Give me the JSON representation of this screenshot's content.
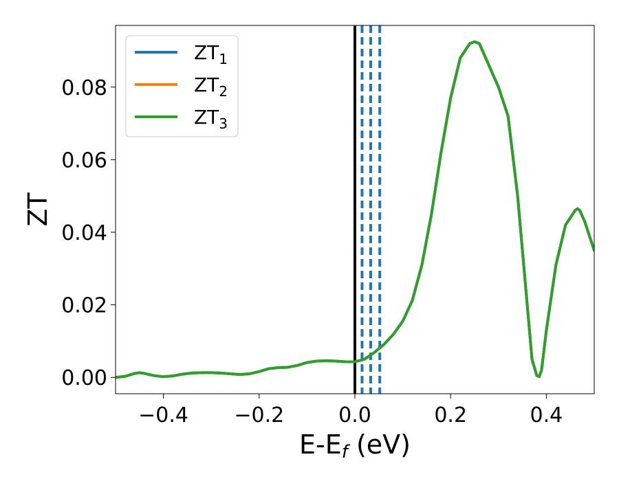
{
  "chart_data": {
    "type": "line",
    "xlabel": {
      "base": "E-E",
      "sub": "f",
      "tail": " (eV)"
    },
    "ylabel": "ZT",
    "xlim": [
      -0.5,
      0.5
    ],
    "ylim": [
      -0.0045,
      0.097
    ],
    "grid": false,
    "legend_position": "top-left",
    "x_ticks": [
      {
        "value": -0.4,
        "label": "−0.4"
      },
      {
        "value": -0.2,
        "label": "−0.2"
      },
      {
        "value": 0.0,
        "label": "0.0"
      },
      {
        "value": 0.2,
        "label": "0.2"
      },
      {
        "value": 0.4,
        "label": "0.4"
      }
    ],
    "y_ticks": [
      {
        "value": 0.0,
        "label": "0.00"
      },
      {
        "value": 0.02,
        "label": "0.02"
      },
      {
        "value": 0.04,
        "label": "0.04"
      },
      {
        "value": 0.06,
        "label": "0.06"
      },
      {
        "value": 0.08,
        "label": "0.08"
      }
    ],
    "reference_lines": [
      {
        "x": 0.0,
        "style": "solid",
        "color": "#000000"
      },
      {
        "x": 0.015,
        "style": "dashed",
        "color": "#1f77b4"
      },
      {
        "x": 0.033,
        "style": "dashed",
        "color": "#1f77b4"
      },
      {
        "x": 0.052,
        "style": "dashed",
        "color": "#1f77b4"
      }
    ],
    "series": [
      {
        "name": "ZT",
        "sub": "1",
        "color": "#1f77b4",
        "x": [
          -0.5,
          -0.48,
          -0.46,
          -0.45,
          -0.44,
          -0.42,
          -0.4,
          -0.38,
          -0.36,
          -0.34,
          -0.32,
          -0.3,
          -0.28,
          -0.26,
          -0.24,
          -0.22,
          -0.2,
          -0.18,
          -0.16,
          -0.14,
          -0.12,
          -0.1,
          -0.08,
          -0.06,
          -0.04,
          -0.02,
          0.0,
          0.02,
          0.04,
          0.06,
          0.08,
          0.1,
          0.12,
          0.14,
          0.16,
          0.18,
          0.2,
          0.22,
          0.24,
          0.25,
          0.26,
          0.28,
          0.3,
          0.32,
          0.34,
          0.36,
          0.37,
          0.38,
          0.385,
          0.39,
          0.4,
          0.42,
          0.44,
          0.46,
          0.465,
          0.47,
          0.48,
          0.5
        ],
        "y": [
          0.0,
          0.0003,
          0.0011,
          0.0013,
          0.0011,
          0.0005,
          0.0002,
          0.0004,
          0.0009,
          0.0012,
          0.0013,
          0.0013,
          0.0012,
          0.001,
          0.0008,
          0.001,
          0.0016,
          0.0024,
          0.0027,
          0.0028,
          0.0033,
          0.0041,
          0.0045,
          0.0046,
          0.0045,
          0.0043,
          0.0043,
          0.005,
          0.0068,
          0.009,
          0.0118,
          0.0155,
          0.0212,
          0.031,
          0.045,
          0.062,
          0.077,
          0.088,
          0.092,
          0.0925,
          0.092,
          0.086,
          0.08,
          0.072,
          0.05,
          0.02,
          0.005,
          0.0005,
          0.0002,
          0.002,
          0.013,
          0.031,
          0.042,
          0.046,
          0.0465,
          0.046,
          0.043,
          0.035
        ]
      },
      {
        "name": "ZT",
        "sub": "2",
        "color": "#ff7f0e",
        "x": [
          -0.5,
          -0.48,
          -0.46,
          -0.45,
          -0.44,
          -0.42,
          -0.4,
          -0.38,
          -0.36,
          -0.34,
          -0.32,
          -0.3,
          -0.28,
          -0.26,
          -0.24,
          -0.22,
          -0.2,
          -0.18,
          -0.16,
          -0.14,
          -0.12,
          -0.1,
          -0.08,
          -0.06,
          -0.04,
          -0.02,
          0.0,
          0.02,
          0.04,
          0.06,
          0.08,
          0.1,
          0.12,
          0.14,
          0.16,
          0.18,
          0.2,
          0.22,
          0.24,
          0.25,
          0.26,
          0.28,
          0.3,
          0.32,
          0.34,
          0.36,
          0.37,
          0.38,
          0.385,
          0.39,
          0.4,
          0.42,
          0.44,
          0.46,
          0.465,
          0.47,
          0.48,
          0.5
        ],
        "y": [
          0.0,
          0.0003,
          0.0011,
          0.0013,
          0.0011,
          0.0005,
          0.0002,
          0.0004,
          0.0009,
          0.0012,
          0.0013,
          0.0013,
          0.0012,
          0.001,
          0.0008,
          0.001,
          0.0016,
          0.0024,
          0.0027,
          0.0028,
          0.0033,
          0.0041,
          0.0045,
          0.0046,
          0.0045,
          0.0043,
          0.0043,
          0.005,
          0.0068,
          0.009,
          0.0118,
          0.0155,
          0.0212,
          0.031,
          0.045,
          0.062,
          0.077,
          0.088,
          0.092,
          0.0925,
          0.092,
          0.086,
          0.08,
          0.072,
          0.05,
          0.02,
          0.005,
          0.0005,
          0.0002,
          0.002,
          0.013,
          0.031,
          0.042,
          0.046,
          0.0465,
          0.046,
          0.043,
          0.035
        ]
      },
      {
        "name": "ZT",
        "sub": "3",
        "color": "#2ca02c",
        "x": [
          -0.5,
          -0.48,
          -0.46,
          -0.45,
          -0.44,
          -0.42,
          -0.4,
          -0.38,
          -0.36,
          -0.34,
          -0.32,
          -0.3,
          -0.28,
          -0.26,
          -0.24,
          -0.22,
          -0.2,
          -0.18,
          -0.16,
          -0.14,
          -0.12,
          -0.1,
          -0.08,
          -0.06,
          -0.04,
          -0.02,
          0.0,
          0.02,
          0.04,
          0.06,
          0.08,
          0.1,
          0.12,
          0.14,
          0.16,
          0.18,
          0.2,
          0.22,
          0.24,
          0.25,
          0.26,
          0.28,
          0.3,
          0.32,
          0.34,
          0.36,
          0.37,
          0.38,
          0.385,
          0.39,
          0.4,
          0.42,
          0.44,
          0.46,
          0.465,
          0.47,
          0.48,
          0.5
        ],
        "y": [
          0.0,
          0.0003,
          0.0011,
          0.0013,
          0.0011,
          0.0005,
          0.0002,
          0.0004,
          0.0009,
          0.0012,
          0.0013,
          0.0013,
          0.0012,
          0.001,
          0.0008,
          0.001,
          0.0016,
          0.0024,
          0.0027,
          0.0028,
          0.0033,
          0.0041,
          0.0045,
          0.0046,
          0.0045,
          0.0043,
          0.0043,
          0.005,
          0.0068,
          0.009,
          0.0118,
          0.0155,
          0.0212,
          0.031,
          0.045,
          0.062,
          0.077,
          0.088,
          0.092,
          0.0925,
          0.092,
          0.086,
          0.08,
          0.072,
          0.05,
          0.02,
          0.005,
          0.0005,
          0.0002,
          0.002,
          0.013,
          0.031,
          0.042,
          0.046,
          0.0465,
          0.046,
          0.043,
          0.035
        ]
      }
    ]
  }
}
